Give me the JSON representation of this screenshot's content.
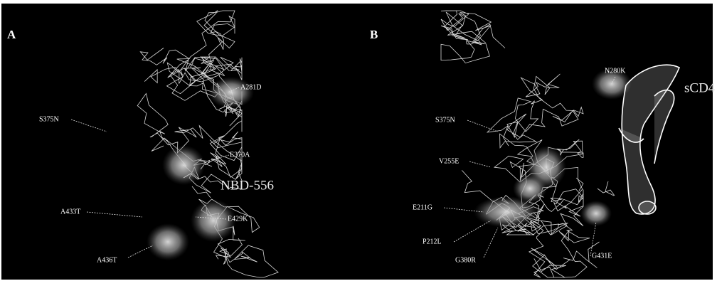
{
  "panels": [
    {
      "id": "A",
      "labels": [
        "A281D",
        "S375N",
        "E370A",
        "NBD-556",
        "A433T",
        "E429K",
        "A436T"
      ]
    },
    {
      "id": "B",
      "labels": [
        "N280K",
        "sCD4",
        "S375N",
        "V255E",
        "E211G",
        "P212L",
        "G380R",
        "G431E"
      ]
    }
  ]
}
